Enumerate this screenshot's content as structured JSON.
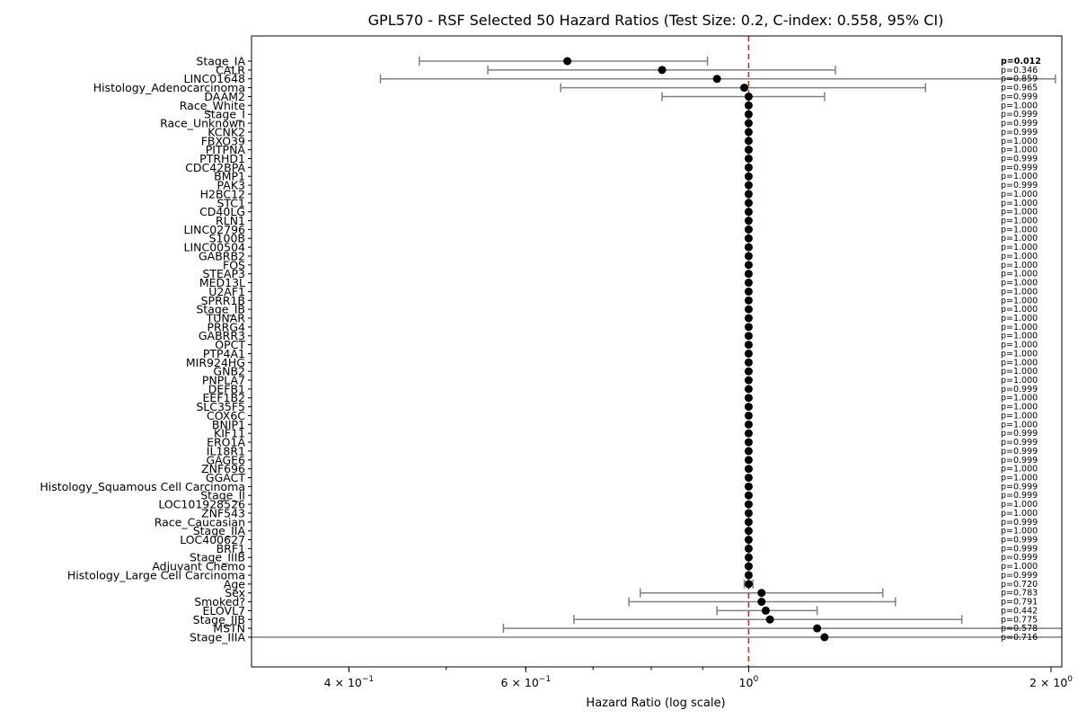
{
  "chart_data": {
    "type": "forest",
    "title": "GPL570 - RSF Selected 50 Hazard Ratios (Test Size: 0.2, C-index: 0.558, 95% CI)",
    "xlabel": "Hazard Ratio (log scale)",
    "ylabel": "",
    "x_scale": "log",
    "xlim": [
      0.32,
      2.05
    ],
    "x_tick_labels": [
      {
        "value": 0.4,
        "label": "4 × 10",
        "exp": "−1"
      },
      {
        "value": 0.6,
        "label": "6 × 10",
        "exp": "−1"
      },
      {
        "value": 1.0,
        "label": "10",
        "exp": "0"
      },
      {
        "value": 2.0,
        "label": "2 × 10",
        "exp": "0"
      }
    ],
    "reference_line": {
      "x": 1.0,
      "color": "#d62728",
      "style": "dashed"
    },
    "colors": {
      "point": "#000000",
      "ci": "#808080",
      "ref": "#d62728"
    },
    "rows": [
      {
        "label": "Stage_IA",
        "hr": 0.66,
        "lo": 0.47,
        "hi": 0.91,
        "p": "p=0.012",
        "bold": true
      },
      {
        "label": "CALR",
        "hr": 0.82,
        "lo": 0.55,
        "hi": 1.22,
        "p": "p=0.346"
      },
      {
        "label": "LINC01648",
        "hr": 0.93,
        "lo": 0.43,
        "hi": 2.02,
        "p": "p=0.859"
      },
      {
        "label": "Histology_Adenocarcinoma",
        "hr": 0.99,
        "lo": 0.65,
        "hi": 1.5,
        "p": "p=0.965"
      },
      {
        "label": "DAAM2",
        "hr": 1.0,
        "lo": 0.82,
        "hi": 1.19,
        "p": "p=0.999"
      },
      {
        "label": "Race_White",
        "hr": 1.0,
        "lo": 1.0,
        "hi": 1.0,
        "p": "p=1.000"
      },
      {
        "label": "Stage_I",
        "hr": 1.0,
        "lo": 1.0,
        "hi": 1.0,
        "p": "p=0.999"
      },
      {
        "label": "Race_Unknown",
        "hr": 1.0,
        "lo": 1.0,
        "hi": 1.0,
        "p": "p=0.999"
      },
      {
        "label": "KCNK2",
        "hr": 1.0,
        "lo": 1.0,
        "hi": 1.0,
        "p": "p=0.999"
      },
      {
        "label": "FBXO39",
        "hr": 1.0,
        "lo": 1.0,
        "hi": 1.0,
        "p": "p=1.000"
      },
      {
        "label": "PITPNA",
        "hr": 1.0,
        "lo": 1.0,
        "hi": 1.0,
        "p": "p=1.000"
      },
      {
        "label": "PTRHD1",
        "hr": 1.0,
        "lo": 1.0,
        "hi": 1.0,
        "p": "p=0.999"
      },
      {
        "label": "CDC42BPA",
        "hr": 1.0,
        "lo": 1.0,
        "hi": 1.0,
        "p": "p=0.999"
      },
      {
        "label": "BMP1",
        "hr": 1.0,
        "lo": 1.0,
        "hi": 1.0,
        "p": "p=1.000"
      },
      {
        "label": "PAK3",
        "hr": 1.0,
        "lo": 1.0,
        "hi": 1.0,
        "p": "p=0.999"
      },
      {
        "label": "H2BC12",
        "hr": 1.0,
        "lo": 1.0,
        "hi": 1.0,
        "p": "p=1.000"
      },
      {
        "label": "STC1",
        "hr": 1.0,
        "lo": 1.0,
        "hi": 1.0,
        "p": "p=1.000"
      },
      {
        "label": "CD40LG",
        "hr": 1.0,
        "lo": 1.0,
        "hi": 1.0,
        "p": "p=1.000"
      },
      {
        "label": "RLN1",
        "hr": 1.0,
        "lo": 1.0,
        "hi": 1.0,
        "p": "p=1.000"
      },
      {
        "label": "LINC02796",
        "hr": 1.0,
        "lo": 1.0,
        "hi": 1.0,
        "p": "p=1.000"
      },
      {
        "label": "S100B",
        "hr": 1.0,
        "lo": 1.0,
        "hi": 1.0,
        "p": "p=1.000"
      },
      {
        "label": "LINC00504",
        "hr": 1.0,
        "lo": 1.0,
        "hi": 1.0,
        "p": "p=1.000"
      },
      {
        "label": "GABRB2",
        "hr": 1.0,
        "lo": 1.0,
        "hi": 1.0,
        "p": "p=1.000"
      },
      {
        "label": "FOS",
        "hr": 1.0,
        "lo": 1.0,
        "hi": 1.0,
        "p": "p=1.000"
      },
      {
        "label": "STEAP3",
        "hr": 1.0,
        "lo": 1.0,
        "hi": 1.0,
        "p": "p=1.000"
      },
      {
        "label": "MED13L",
        "hr": 1.0,
        "lo": 1.0,
        "hi": 1.0,
        "p": "p=1.000"
      },
      {
        "label": "U2AF1",
        "hr": 1.0,
        "lo": 1.0,
        "hi": 1.0,
        "p": "p=1.000"
      },
      {
        "label": "SPRR1B",
        "hr": 1.0,
        "lo": 1.0,
        "hi": 1.0,
        "p": "p=1.000"
      },
      {
        "label": "Stage_IB",
        "hr": 1.0,
        "lo": 1.0,
        "hi": 1.0,
        "p": "p=1.000"
      },
      {
        "label": "TUNAR",
        "hr": 1.0,
        "lo": 1.0,
        "hi": 1.0,
        "p": "p=1.000"
      },
      {
        "label": "PRRG4",
        "hr": 1.0,
        "lo": 1.0,
        "hi": 1.0,
        "p": "p=1.000"
      },
      {
        "label": "GABRR3",
        "hr": 1.0,
        "lo": 1.0,
        "hi": 1.0,
        "p": "p=1.000"
      },
      {
        "label": "OPCT",
        "hr": 1.0,
        "lo": 1.0,
        "hi": 1.0,
        "p": "p=1.000"
      },
      {
        "label": "PTP4A1",
        "hr": 1.0,
        "lo": 1.0,
        "hi": 1.0,
        "p": "p=1.000"
      },
      {
        "label": "MIR924HG",
        "hr": 1.0,
        "lo": 1.0,
        "hi": 1.0,
        "p": "p=1.000"
      },
      {
        "label": "GNB2",
        "hr": 1.0,
        "lo": 1.0,
        "hi": 1.0,
        "p": "p=1.000"
      },
      {
        "label": "PNPLA7",
        "hr": 1.0,
        "lo": 1.0,
        "hi": 1.0,
        "p": "p=1.000"
      },
      {
        "label": "DEFB1",
        "hr": 1.0,
        "lo": 1.0,
        "hi": 1.0,
        "p": "p=0.999"
      },
      {
        "label": "EEF1B2",
        "hr": 1.0,
        "lo": 1.0,
        "hi": 1.0,
        "p": "p=1.000"
      },
      {
        "label": "SLC35F5",
        "hr": 1.0,
        "lo": 1.0,
        "hi": 1.0,
        "p": "p=1.000"
      },
      {
        "label": "COX6C",
        "hr": 1.0,
        "lo": 1.0,
        "hi": 1.0,
        "p": "p=1.000"
      },
      {
        "label": "BNIP1",
        "hr": 1.0,
        "lo": 1.0,
        "hi": 1.0,
        "p": "p=1.000"
      },
      {
        "label": "KIF11",
        "hr": 1.0,
        "lo": 1.0,
        "hi": 1.0,
        "p": "p=0.999"
      },
      {
        "label": "ERO1A",
        "hr": 1.0,
        "lo": 1.0,
        "hi": 1.0,
        "p": "p=0.999"
      },
      {
        "label": "IL18R1",
        "hr": 1.0,
        "lo": 1.0,
        "hi": 1.0,
        "p": "p=0.999"
      },
      {
        "label": "GAGE6",
        "hr": 1.0,
        "lo": 1.0,
        "hi": 1.0,
        "p": "p=0.999"
      },
      {
        "label": "ZNF696",
        "hr": 1.0,
        "lo": 1.0,
        "hi": 1.0,
        "p": "p=1.000"
      },
      {
        "label": "GGACT",
        "hr": 1.0,
        "lo": 1.0,
        "hi": 1.0,
        "p": "p=1.000"
      },
      {
        "label": "Histology_Squamous Cell Carcinoma",
        "hr": 1.0,
        "lo": 1.0,
        "hi": 1.0,
        "p": "p=0.999"
      },
      {
        "label": "Stage_II",
        "hr": 1.0,
        "lo": 1.0,
        "hi": 1.0,
        "p": "p=0.999"
      },
      {
        "label": "LOC101928526",
        "hr": 1.0,
        "lo": 1.0,
        "hi": 1.0,
        "p": "p=1.000"
      },
      {
        "label": "ZNF543",
        "hr": 1.0,
        "lo": 1.0,
        "hi": 1.0,
        "p": "p=1.000"
      },
      {
        "label": "Race_Caucasian",
        "hr": 1.0,
        "lo": 1.0,
        "hi": 1.0,
        "p": "p=0.999"
      },
      {
        "label": "Stage_IIA",
        "hr": 1.0,
        "lo": 1.0,
        "hi": 1.0,
        "p": "p=1.000"
      },
      {
        "label": "LOC400627",
        "hr": 1.0,
        "lo": 1.0,
        "hi": 1.0,
        "p": "p=0.999"
      },
      {
        "label": "BRF1",
        "hr": 1.0,
        "lo": 1.0,
        "hi": 1.0,
        "p": "p=0.999"
      },
      {
        "label": "Stage_IIIB",
        "hr": 1.0,
        "lo": 1.0,
        "hi": 1.0,
        "p": "p=0.999"
      },
      {
        "label": "Adjuvant Chemo",
        "hr": 1.0,
        "lo": 1.0,
        "hi": 1.0,
        "p": "p=1.000"
      },
      {
        "label": "Histology_Large Cell Carcinoma",
        "hr": 1.0,
        "lo": 1.0,
        "hi": 1.0,
        "p": "p=0.999"
      },
      {
        "label": "Age",
        "hr": 1.0,
        "lo": 0.99,
        "hi": 1.01,
        "p": "p=0.720"
      },
      {
        "label": "Sex",
        "hr": 1.03,
        "lo": 0.78,
        "hi": 1.36,
        "p": "p=0.783"
      },
      {
        "label": "Smoked?",
        "hr": 1.03,
        "lo": 0.76,
        "hi": 1.4,
        "p": "p=0.791"
      },
      {
        "label": "ELOVL7",
        "hr": 1.04,
        "lo": 0.93,
        "hi": 1.17,
        "p": "p=0.442"
      },
      {
        "label": "Stage_IIB",
        "hr": 1.05,
        "lo": 0.67,
        "hi": 1.63,
        "p": "p=0.775"
      },
      {
        "label": "MSTN",
        "hr": 1.17,
        "lo": 0.57,
        "hi": 2.4,
        "p": "p=0.578"
      },
      {
        "label": "Stage_IIIA",
        "hr": 1.19,
        "lo": 0.3,
        "hi": 4.5,
        "p": "p=0.716"
      }
    ]
  }
}
